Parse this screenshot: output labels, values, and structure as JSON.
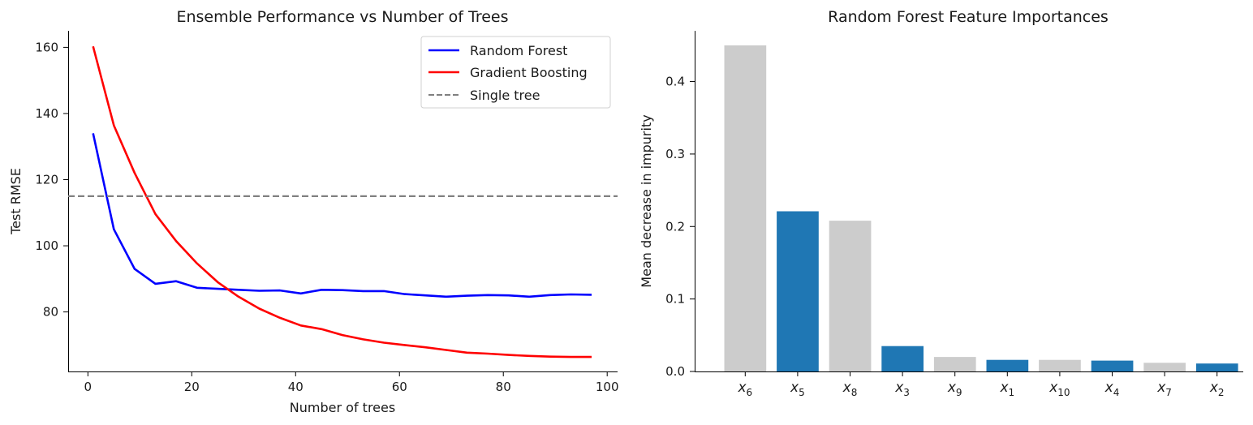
{
  "chart_data": [
    {
      "type": "line",
      "title": "Ensemble Performance vs Number of Trees",
      "xlabel": "Number of trees",
      "ylabel": "Test RMSE",
      "xlim": [
        -3.8,
        102
      ],
      "ylim": [
        62,
        165
      ],
      "xticks": [
        "0",
        "20",
        "40",
        "60",
        "80",
        "100"
      ],
      "xtick_values": [
        0,
        20,
        40,
        60,
        80,
        100
      ],
      "yticks": [
        "80",
        "100",
        "120",
        "140",
        "160"
      ],
      "ytick_values": [
        80,
        100,
        120,
        140,
        160
      ],
      "legend_position": "top-right",
      "series": [
        {
          "name": "Random Forest",
          "color": "#0000ff",
          "x": [
            1,
            5,
            9,
            13,
            17,
            21,
            25,
            29,
            33,
            37,
            41,
            45,
            49,
            53,
            57,
            61,
            65,
            69,
            73,
            77,
            81,
            85,
            89,
            93,
            97
          ],
          "y": [
            134,
            105,
            93,
            88.5,
            89.3,
            87.3,
            87,
            86.7,
            86.4,
            86.5,
            85.6,
            86.7,
            86.6,
            86.3,
            86.3,
            85.4,
            85,
            84.6,
            84.9,
            85.1,
            85,
            84.6,
            85.1,
            85.3,
            85.2
          ],
          "style": "solid"
        },
        {
          "name": "Gradient Boosting",
          "color": "#ff0000",
          "x": [
            1,
            5,
            9,
            13,
            17,
            21,
            25,
            29,
            33,
            37,
            41,
            45,
            49,
            53,
            57,
            61,
            65,
            69,
            73,
            77,
            81,
            85,
            89,
            93,
            97
          ],
          "y": [
            160.3,
            136.4,
            122,
            109.6,
            101.4,
            94.7,
            89,
            84.6,
            81,
            78.2,
            75.9,
            74.8,
            73,
            71.7,
            70.7,
            70,
            69.3,
            68.5,
            67.7,
            67.4,
            67,
            66.7,
            66.5,
            66.4,
            66.4
          ],
          "style": "solid"
        },
        {
          "name": "Single tree",
          "color": "#808080",
          "y": [
            115
          ],
          "style": "dashed",
          "kind": "hline"
        }
      ]
    },
    {
      "type": "bar",
      "title": "Random Forest Feature Importances",
      "xlabel": "",
      "ylabel": "Mean decrease in impurity",
      "ylim": [
        0,
        0.47
      ],
      "yticks": [
        "0.0",
        "0.1",
        "0.2",
        "0.3",
        "0.4"
      ],
      "ytick_values": [
        0,
        0.1,
        0.2,
        0.3,
        0.4
      ],
      "categories": [
        {
          "base": "x",
          "sub": "6"
        },
        {
          "base": "x",
          "sub": "5"
        },
        {
          "base": "x",
          "sub": "8"
        },
        {
          "base": "x",
          "sub": "3"
        },
        {
          "base": "x",
          "sub": "9"
        },
        {
          "base": "x",
          "sub": "1"
        },
        {
          "base": "x",
          "sub": "10"
        },
        {
          "base": "x",
          "sub": "4"
        },
        {
          "base": "x",
          "sub": "7"
        },
        {
          "base": "x",
          "sub": "2"
        }
      ],
      "values": [
        0.45,
        0.221,
        0.208,
        0.035,
        0.02,
        0.016,
        0.016,
        0.015,
        0.012,
        0.011
      ],
      "colors": [
        "#cccccc",
        "#1f77b4",
        "#cccccc",
        "#1f77b4",
        "#cccccc",
        "#1f77b4",
        "#cccccc",
        "#1f77b4",
        "#cccccc",
        "#1f77b4"
      ]
    }
  ]
}
